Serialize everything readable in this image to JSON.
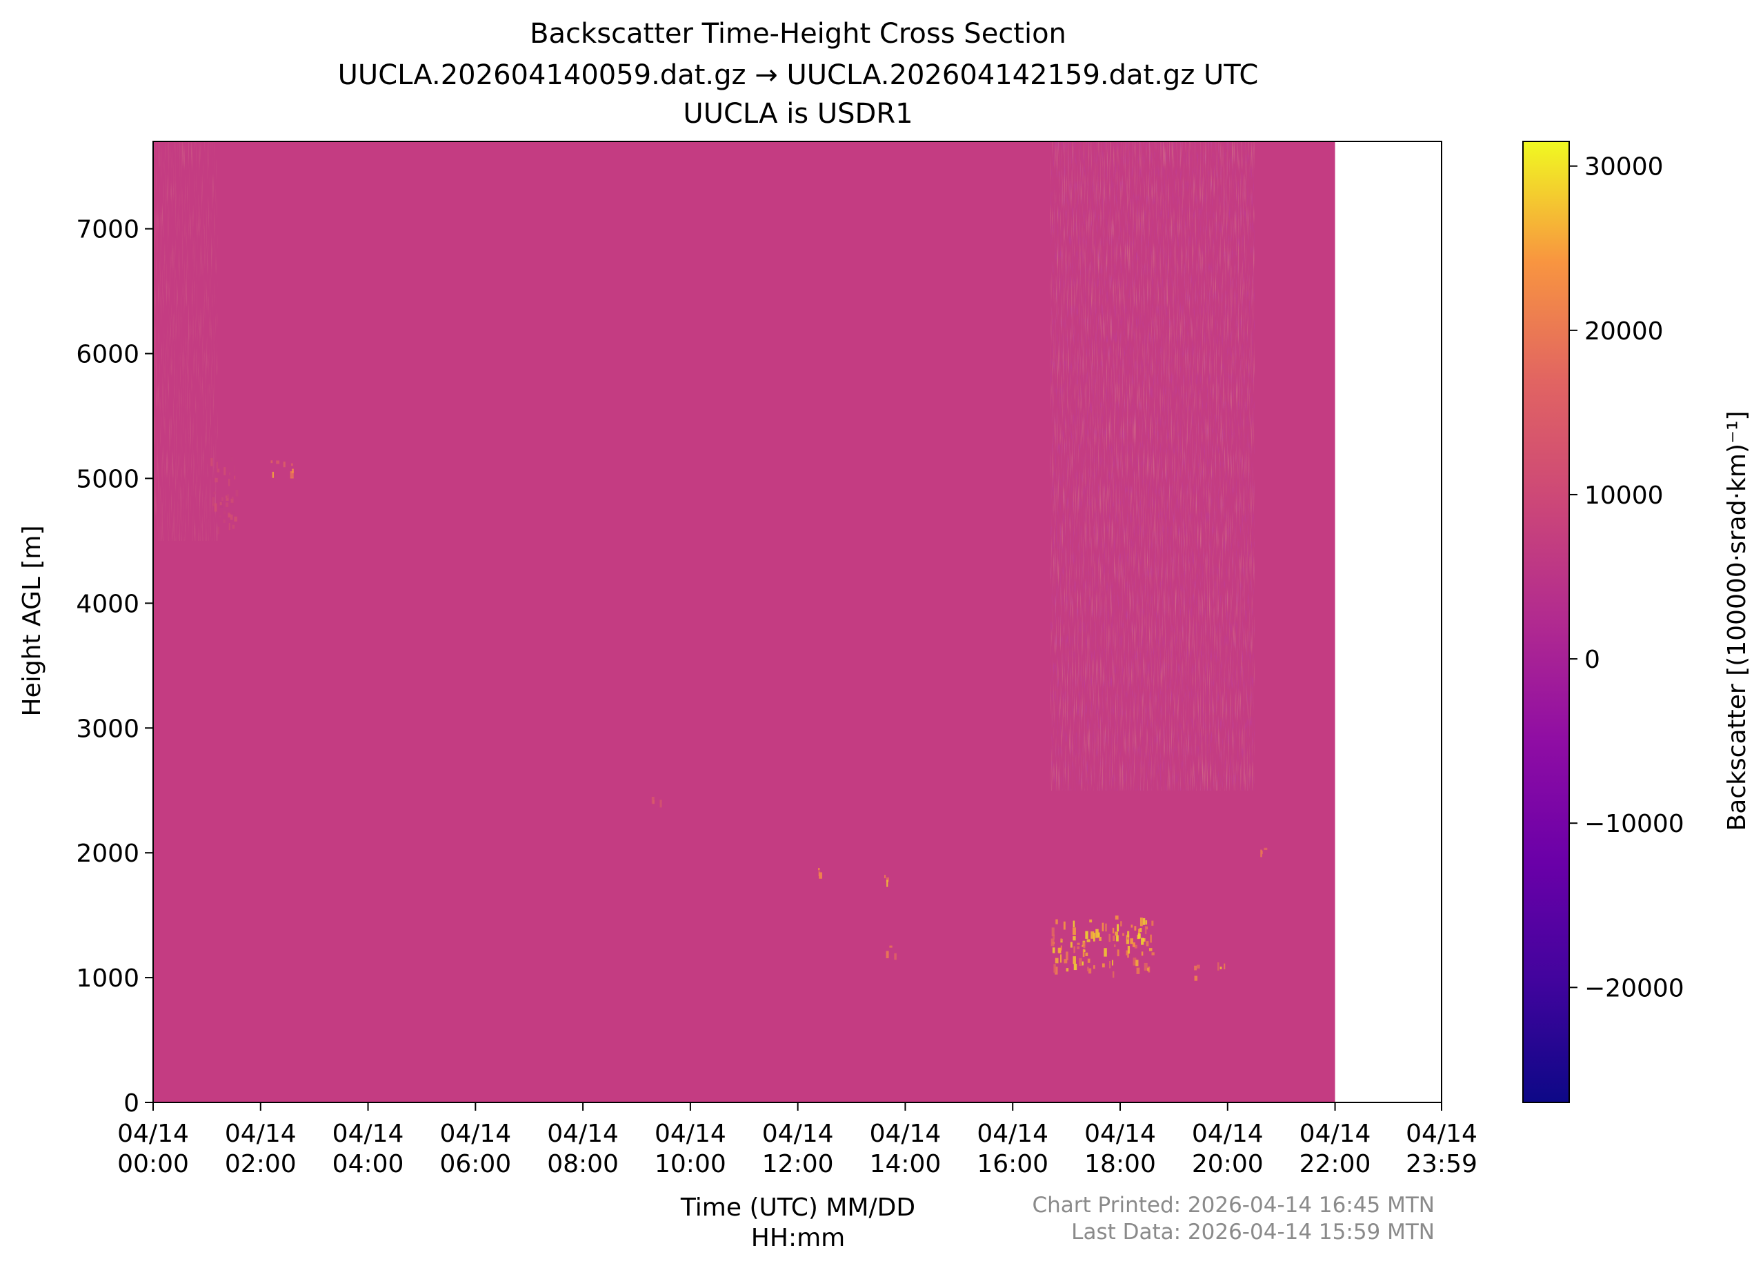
{
  "chart_data": {
    "type": "heatmap",
    "title": "Backscatter Time-Height Cross Section",
    "subtitle": "UUCLA.202604140059.dat.gz → UUCLA.202604142159.dat.gz UTC",
    "subtitle2": "UUCLA is USDR1",
    "xlabel_line1": "Time (UTC) MM/DD",
    "xlabel_line2": "HH:mm",
    "ylabel": "Height AGL [m]",
    "x_axis": {
      "range_hours": [
        0,
        23.983
      ],
      "data_end_hours": 22.0,
      "ticks": [
        {
          "hours": 0,
          "date": "04/14",
          "time": "00:00"
        },
        {
          "hours": 2,
          "date": "04/14",
          "time": "02:00"
        },
        {
          "hours": 4,
          "date": "04/14",
          "time": "04:00"
        },
        {
          "hours": 6,
          "date": "04/14",
          "time": "06:00"
        },
        {
          "hours": 8,
          "date": "04/14",
          "time": "08:00"
        },
        {
          "hours": 10,
          "date": "04/14",
          "time": "10:00"
        },
        {
          "hours": 12,
          "date": "04/14",
          "time": "12:00"
        },
        {
          "hours": 14,
          "date": "04/14",
          "time": "14:00"
        },
        {
          "hours": 16,
          "date": "04/14",
          "time": "16:00"
        },
        {
          "hours": 18,
          "date": "04/14",
          "time": "18:00"
        },
        {
          "hours": 20,
          "date": "04/14",
          "time": "20:00"
        },
        {
          "hours": 22,
          "date": "04/14",
          "time": "22:00"
        },
        {
          "hours": 23.983,
          "date": "04/14",
          "time": "23:59"
        }
      ]
    },
    "y_axis": {
      "range": [
        0,
        7700
      ],
      "ticks": [
        "0",
        "1000",
        "2000",
        "3000",
        "4000",
        "5000",
        "6000",
        "7000"
      ]
    },
    "colorbar": {
      "label": "Backscatter [(100000·srad·km)⁻¹]",
      "range": [
        -27000,
        31500
      ],
      "colormap": "plasma",
      "ticks": [
        "−20000",
        "−10000",
        "0",
        "10000",
        "20000",
        "30000"
      ]
    },
    "background_color": "#c43c82",
    "features": [
      {
        "description": "cloud return",
        "t_start": 1.05,
        "t_end": 1.55,
        "h_low": 4600,
        "h_high": 5200,
        "value": 12000
      },
      {
        "description": "cloud return",
        "t_start": 2.1,
        "t_end": 2.6,
        "h_low": 5020,
        "h_high": 5150,
        "value": 26000
      },
      {
        "description": "cloud return",
        "t_start": 9.15,
        "t_end": 9.45,
        "h_low": 2400,
        "h_high": 2470,
        "value": 17000
      },
      {
        "description": "cloud return",
        "t_start": 12.35,
        "t_end": 12.42,
        "h_low": 1820,
        "h_high": 1880,
        "value": 24000
      },
      {
        "description": "cloud return",
        "t_start": 13.55,
        "t_end": 13.65,
        "h_low": 1780,
        "h_high": 1880,
        "value": 28000
      },
      {
        "description": "cloud return",
        "t_start": 13.6,
        "t_end": 13.85,
        "h_low": 1180,
        "h_high": 1280,
        "value": 30000
      },
      {
        "description": "cloud layer",
        "t_start": 16.7,
        "t_end": 18.6,
        "h_low": 1050,
        "h_high": 1500,
        "value": 30000
      },
      {
        "description": "cloud return",
        "t_start": 19.35,
        "t_end": 19.45,
        "h_low": 1000,
        "h_high": 1250,
        "value": 26000
      },
      {
        "description": "cloud return",
        "t_start": 19.8,
        "t_end": 19.95,
        "h_low": 1080,
        "h_high": 1150,
        "value": 30000
      },
      {
        "description": "cloud return",
        "t_start": 20.6,
        "t_end": 20.7,
        "h_low": 1990,
        "h_high": 2080,
        "value": 26000
      }
    ],
    "noisy_region": {
      "t_start": 16.7,
      "t_end": 20.5,
      "h_low": 2500,
      "h_high": 7700
    }
  },
  "footer": {
    "printed": "Chart Printed: 2026-04-14 16:45 MTN",
    "last_data": "Last Data: 2026-04-14 15:59 MTN"
  }
}
